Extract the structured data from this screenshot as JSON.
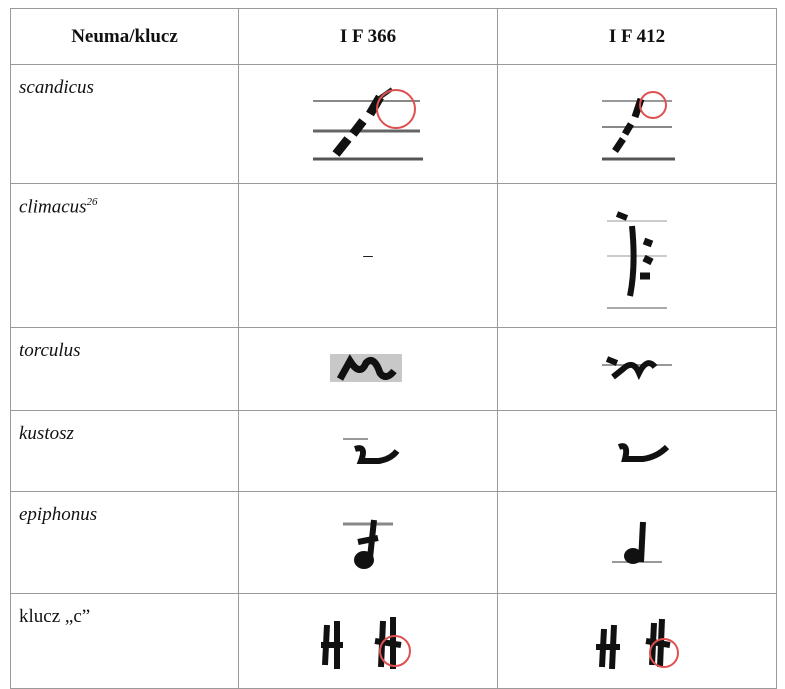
{
  "table": {
    "header": [
      "Neuma/klucz",
      "I F 366",
      "I F 412"
    ],
    "rows": [
      {
        "name": "scandicus"
      },
      {
        "name": "climacus",
        "note": "26",
        "missing": "–"
      },
      {
        "name": "torculus"
      },
      {
        "name": "kustosz"
      },
      {
        "name": "epiphonus"
      },
      {
        "name": "klucz „c”"
      }
    ]
  }
}
